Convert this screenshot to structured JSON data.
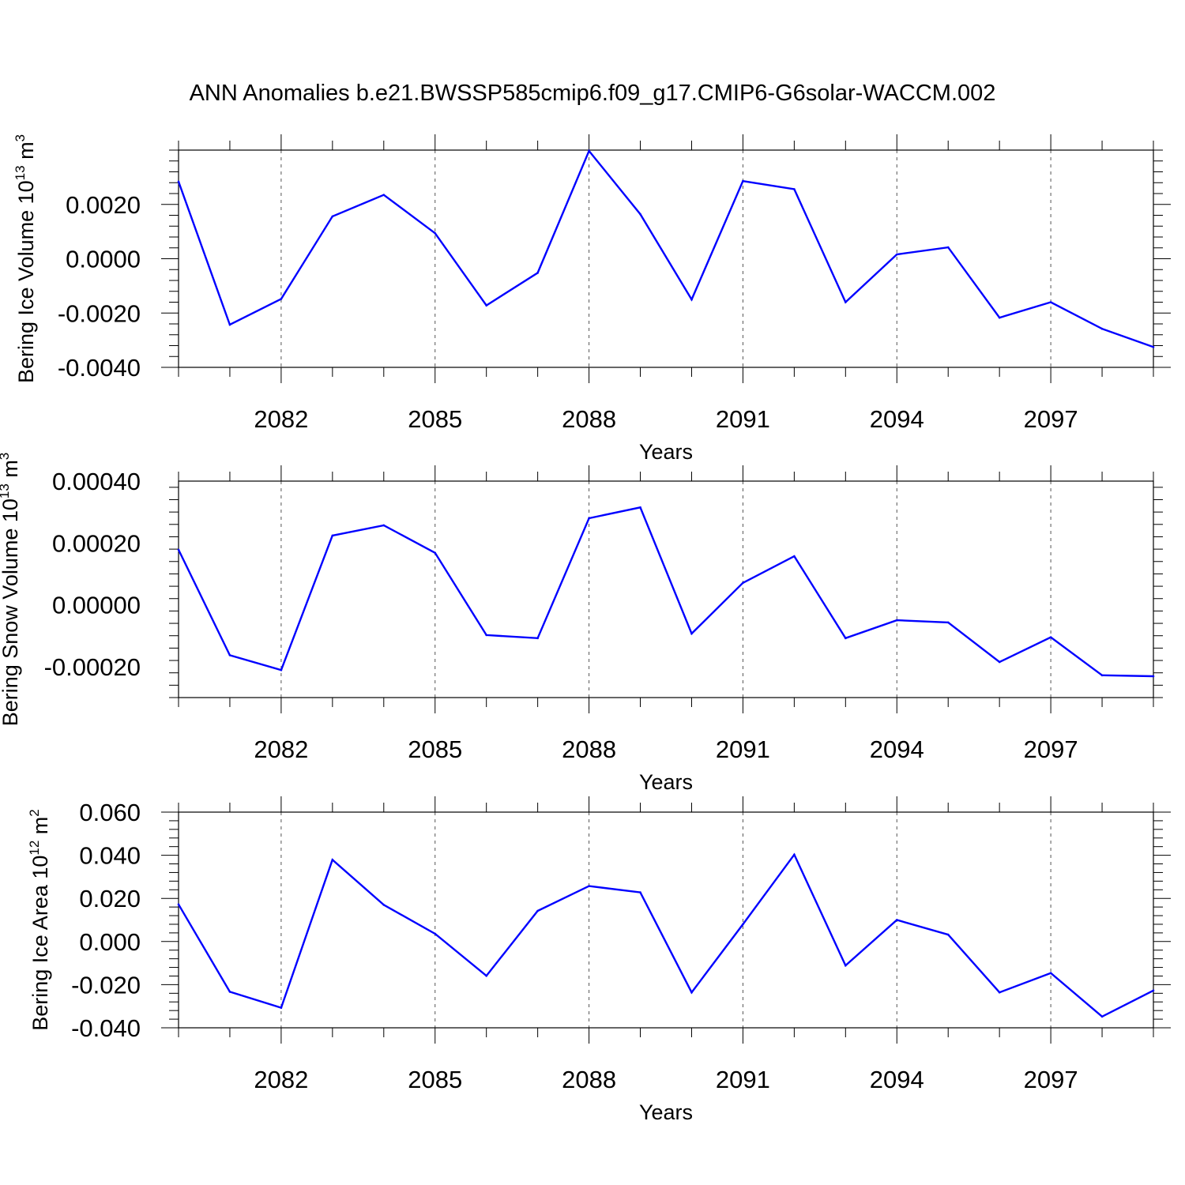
{
  "title": "ANN Anomalies b.e21.BWSSP585cmip6.f09_g17.CMIP6-G6solar-WACCM.002",
  "line_color": "#0000ff",
  "chart_data": [
    {
      "type": "line",
      "xlabel": "Years",
      "ylabel": {
        "text": "Bering Ice Volume 10",
        "sup": "13",
        "unit": " m",
        "unit_sup": "3"
      },
      "x": [
        2080,
        2081,
        2082,
        2083,
        2084,
        2085,
        2086,
        2087,
        2088,
        2089,
        2090,
        2091,
        2092,
        2093,
        2094,
        2095,
        2096,
        2097,
        2098,
        2099
      ],
      "xlim": [
        2080,
        2099
      ],
      "x_ticks": [
        "2082",
        "2085",
        "2088",
        "2091",
        "2094",
        "2097"
      ],
      "ylim": [
        -0.004,
        0.004
      ],
      "y_ticks": [
        "0.0020",
        "0.0000",
        "-0.0020",
        "-0.0040"
      ],
      "grid": "dashed vertical at major x ticks",
      "series": [
        {
          "values": [
            0.00284,
            -0.00243,
            -0.00148,
            0.00156,
            0.00235,
            0.00094,
            -0.00172,
            -0.00052,
            0.00397,
            0.00164,
            -0.0015,
            0.00286,
            0.00256,
            -0.0016,
            0.00016,
            0.00042,
            -0.00217,
            -0.0016,
            -0.00258,
            -0.00325
          ]
        }
      ]
    },
    {
      "type": "line",
      "xlabel": "Years",
      "ylabel": {
        "text": "Bering Snow Volume 10",
        "sup": "13",
        "unit": " m",
        "unit_sup": "3"
      },
      "x": [
        2080,
        2081,
        2082,
        2083,
        2084,
        2085,
        2086,
        2087,
        2088,
        2089,
        2090,
        2091,
        2092,
        2093,
        2094,
        2095,
        2096,
        2097,
        2098,
        2099
      ],
      "xlim": [
        2080,
        2099
      ],
      "x_ticks": [
        "2082",
        "2085",
        "2088",
        "2091",
        "2094",
        "2097"
      ],
      "ylim": [
        -0.0003,
        0.0004
      ],
      "y_ticks": [
        "0.00040",
        "0.00020",
        "0.00000",
        "-0.00020"
      ],
      "grid": "dashed vertical at major x ticks",
      "series": [
        {
          "values": [
            0.000178,
            -0.000163,
            -0.000211,
            0.000224,
            0.000257,
            0.000168,
            -9.8e-05,
            -0.000108,
            0.00028,
            0.000315,
            -9.3e-05,
            7.1e-05,
            0.000157,
            -0.000108,
            -5e-05,
            -5.7e-05,
            -0.000185,
            -0.000105,
            -0.000228,
            -0.000231
          ]
        }
      ]
    },
    {
      "type": "line",
      "xlabel": "Years",
      "ylabel": {
        "text": "Bering Ice Area 10",
        "sup": "12",
        "unit": " m",
        "unit_sup": "2"
      },
      "x": [
        2080,
        2081,
        2082,
        2083,
        2084,
        2085,
        2086,
        2087,
        2088,
        2089,
        2090,
        2091,
        2092,
        2093,
        2094,
        2095,
        2096,
        2097,
        2098,
        2099
      ],
      "xlim": [
        2080,
        2099
      ],
      "x_ticks": [
        "2082",
        "2085",
        "2088",
        "2091",
        "2094",
        "2097"
      ],
      "ylim": [
        -0.04,
        0.06
      ],
      "y_ticks": [
        "0.060",
        "0.040",
        "0.020",
        "0.000",
        "-0.020",
        "-0.040"
      ],
      "grid": "dashed vertical at major x ticks",
      "series": [
        {
          "values": [
            0.0172,
            -0.0233,
            -0.0307,
            0.0379,
            0.017,
            0.0036,
            -0.0159,
            0.0142,
            0.0257,
            0.0228,
            -0.0236,
            0.008,
            0.0403,
            -0.0111,
            0.01,
            0.0032,
            -0.0236,
            -0.0146,
            -0.0348,
            -0.0227
          ]
        }
      ]
    }
  ]
}
